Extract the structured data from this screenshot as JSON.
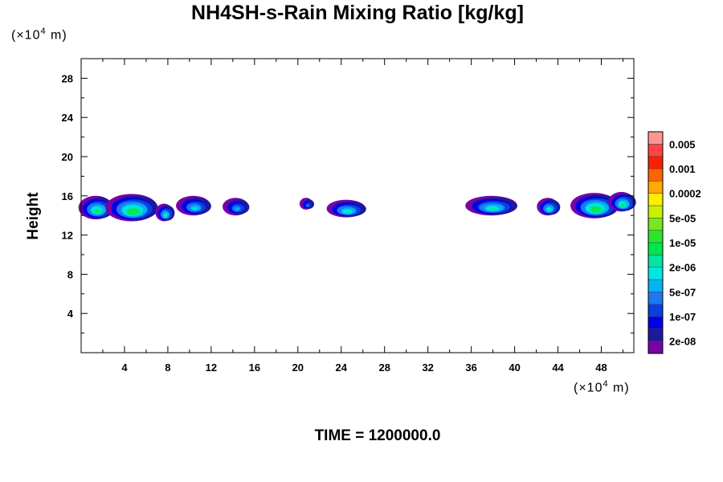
{
  "chart_data": {
    "type": "heatmap",
    "title": "NH4SH-s-Rain Mixing Ratio [kg/kg]",
    "ylabel": "Height",
    "xlabel": "",
    "x_unit": "(×10⁴ m)",
    "y_unit": "(×10⁴ m)",
    "x_unit_base": "(×10",
    "x_unit_exp": "4",
    "x_unit_tail": " m)",
    "y_unit_base": "(×10",
    "y_unit_exp": "4",
    "y_unit_tail": " m)",
    "xlim": [
      0,
      51
    ],
    "ylim": [
      0,
      30
    ],
    "x_ticks": [
      4,
      8,
      12,
      16,
      20,
      24,
      28,
      32,
      36,
      40,
      44,
      48
    ],
    "y_ticks": [
      4,
      8,
      12,
      16,
      20,
      24,
      28
    ],
    "x_minor_step": 2,
    "y_minor_step": 2,
    "colorbar": {
      "colors": [
        "#7a00a8",
        "#1a1a9c",
        "#0000e6",
        "#0a3fe0",
        "#1e78f0",
        "#00b4f0",
        "#00e6e6",
        "#00e6a0",
        "#00e650",
        "#28e628",
        "#78e61e",
        "#c8f000",
        "#ffee00",
        "#ffaa00",
        "#ff6400",
        "#ff1e00",
        "#ff4646",
        "#ff9696"
      ],
      "labels": [
        "2e-08",
        "1e-07",
        "5e-07",
        "2e-06",
        "1e-05",
        "5e-05",
        "0.0002",
        "0.001",
        "0.005"
      ]
    },
    "blobs": [
      {
        "x": 1.5,
        "y": 14.8,
        "rx": 1.6,
        "ry": 1.2,
        "peak": 9
      },
      {
        "x": 4.8,
        "y": 14.8,
        "rx": 2.4,
        "ry": 1.4,
        "peak": 10
      },
      {
        "x": 7.8,
        "y": 14.3,
        "rx": 0.8,
        "ry": 0.9,
        "peak": 8
      },
      {
        "x": 10.5,
        "y": 15.0,
        "rx": 1.6,
        "ry": 1.0,
        "peak": 7
      },
      {
        "x": 14.4,
        "y": 14.9,
        "rx": 1.2,
        "ry": 0.9,
        "peak": 6
      },
      {
        "x": 20.9,
        "y": 15.2,
        "rx": 0.6,
        "ry": 0.6,
        "peak": 5
      },
      {
        "x": 24.6,
        "y": 14.7,
        "rx": 1.8,
        "ry": 0.9,
        "peak": 8
      },
      {
        "x": 38.0,
        "y": 15.0,
        "rx": 2.4,
        "ry": 1.0,
        "peak": 8
      },
      {
        "x": 43.2,
        "y": 14.9,
        "rx": 1.0,
        "ry": 0.9,
        "peak": 8
      },
      {
        "x": 47.5,
        "y": 15.0,
        "rx": 2.2,
        "ry": 1.3,
        "peak": 10
      },
      {
        "x": 50.0,
        "y": 15.4,
        "rx": 1.2,
        "ry": 1.0,
        "peak": 9
      }
    ]
  },
  "footer": {
    "time_label": "TIME = 1200000.0"
  }
}
